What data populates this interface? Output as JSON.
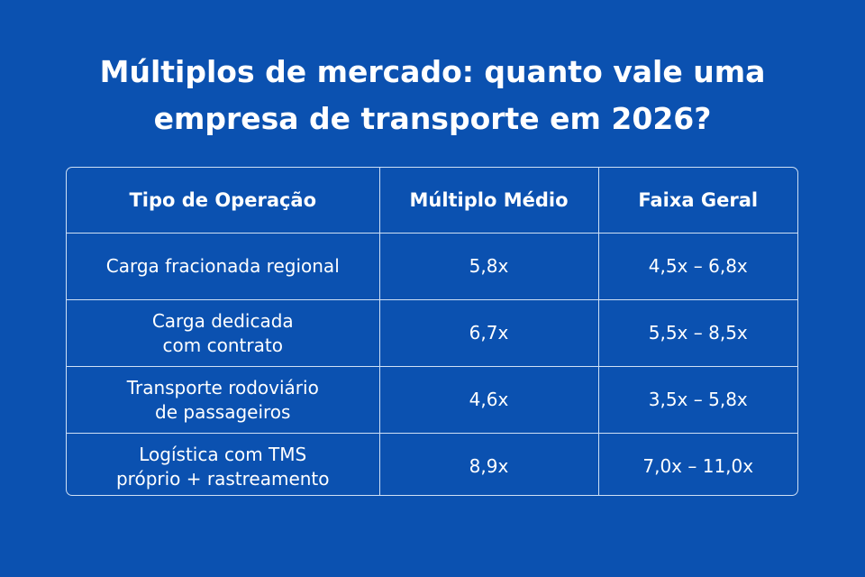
{
  "title": [
    "Múltiplos de mercado: quanto vale uma",
    "empresa de transporte em 2026?"
  ],
  "table": {
    "header": [
      "Tipo de Operação",
      "Múltiplo Médio",
      "Faixa Geral"
    ],
    "rows": [
      [
        [
          "Carga fracionada regional"
        ],
        "5,8x",
        "4,5x – 6,8x"
      ],
      [
        [
          "Carga dedicada",
          "com contrato"
        ],
        "6,7x",
        "5,5x – 8,5x"
      ],
      [
        [
          "Transporte rodoviário",
          "de passageiros"
        ],
        "4,6x",
        "3,5x – 5,8x"
      ],
      [
        [
          "Logística com TMS",
          "próprio + rastreamento"
        ],
        "8,9x",
        "7,0x – 11,0x"
      ]
    ]
  }
}
